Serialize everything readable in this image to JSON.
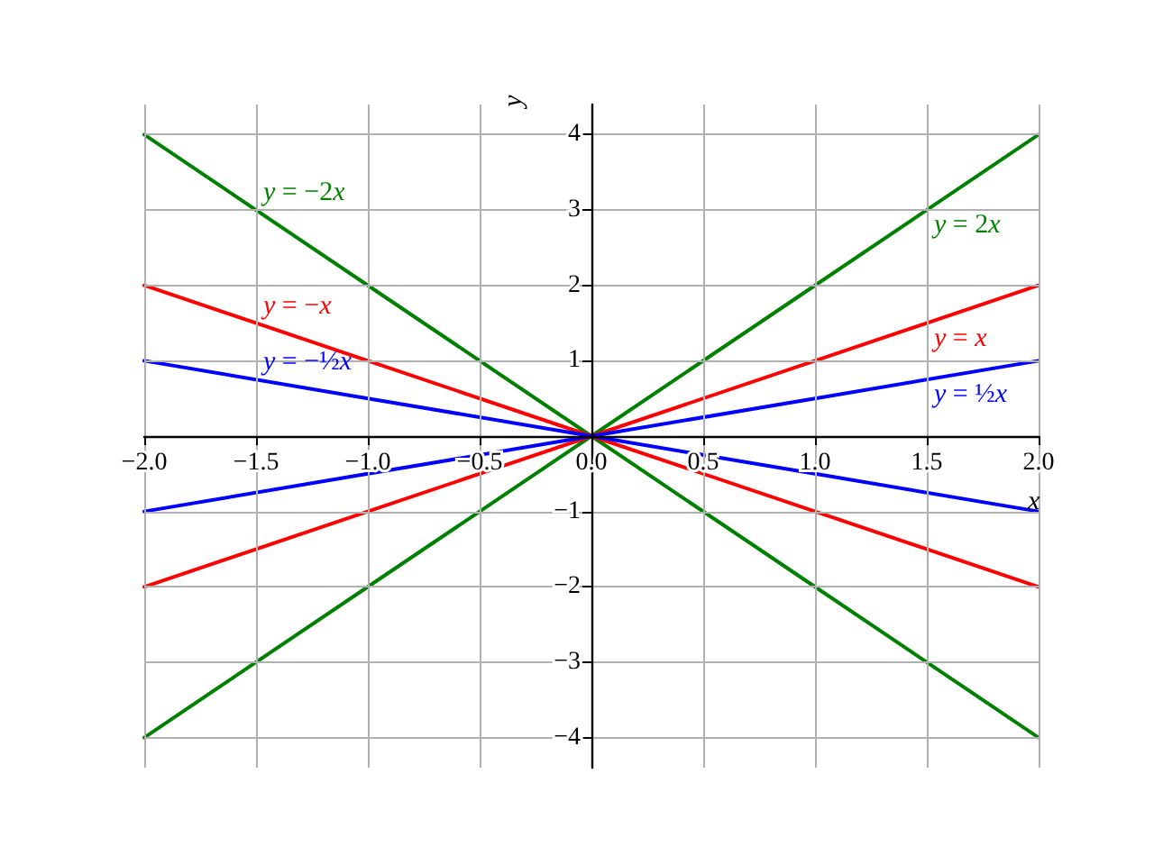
{
  "chart_data": {
    "type": "line",
    "xlabel": "x",
    "ylabel": "y",
    "xlim": [
      -2,
      2
    ],
    "ylim": [
      -4.4,
      4.4
    ],
    "xticks": [
      {
        "value": -2,
        "label": "−2.0"
      },
      {
        "value": -1.5,
        "label": "−1.5"
      },
      {
        "value": -1,
        "label": "−1.0"
      },
      {
        "value": -0.5,
        "label": "−0.5"
      },
      {
        "value": 0,
        "label": "0.0"
      },
      0.5,
      {
        "value": 1,
        "label": "1.0"
      },
      1.5,
      {
        "value": 2,
        "label": "2.0"
      }
    ],
    "yticks": [
      {
        "value": -4,
        "label": "−4"
      },
      {
        "value": -3,
        "label": "−3"
      },
      {
        "value": -2,
        "label": "−2"
      },
      {
        "value": -1,
        "label": "−1"
      },
      {
        "value": 0,
        "label": null
      },
      1,
      2,
      3,
      4
    ],
    "grid": true,
    "x": [
      -2,
      -1,
      0,
      1,
      2
    ],
    "series": [
      {
        "name": "y = −2x",
        "color": "#008000",
        "values": [
          4,
          2,
          0,
          -2,
          -4
        ]
      },
      {
        "name": "y = −x",
        "color": "#ff0000",
        "values": [
          2,
          1,
          0,
          -1,
          -2
        ]
      },
      {
        "name": "y = −½x",
        "color": "#0000ff",
        "values": [
          1,
          0.5,
          0,
          -0.5,
          -1
        ]
      },
      {
        "name": "y = 2x",
        "color": "#008000",
        "values": [
          -4,
          -2,
          0,
          2,
          4
        ]
      },
      {
        "name": "y = x",
        "color": "#ff0000",
        "values": [
          -2,
          -1,
          0,
          1,
          2
        ]
      },
      {
        "name": "y = ½x",
        "color": "#0000ff",
        "values": [
          -1,
          -0.5,
          0,
          0.5,
          1
        ]
      }
    ]
  }
}
